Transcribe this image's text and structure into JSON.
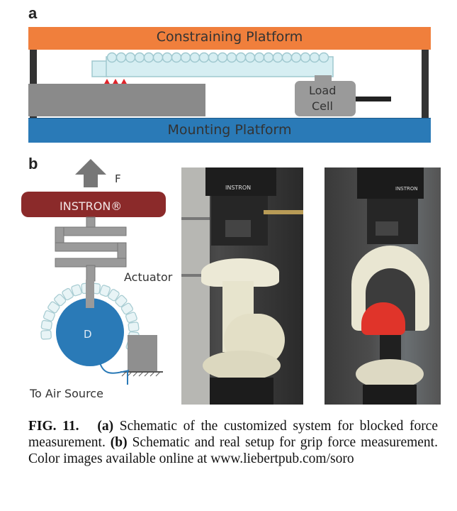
{
  "panel_a": {
    "label": "a",
    "top_platform": "Constraining Platform",
    "bottom_platform": "Mounting Platform",
    "load_cell_line1": "Load",
    "load_cell_line2": "Cell"
  },
  "panel_b": {
    "label": "b",
    "force_label": "F",
    "instron_label": "INSTRON®",
    "actuator_label": "Actuator",
    "diameter_label": "D",
    "air_source_label": "To Air Source",
    "photo_brand": "INSTRON"
  },
  "caption": {
    "fig_label": "FIG. 11.",
    "part_a_label": "(a)",
    "part_a_text": " Schematic of the customized system for blocked force measurement. ",
    "part_b_label": "(b)",
    "part_b_text": " Schematic and real setup for grip force measurement. Color images available online at www.liebertpub.com/soro"
  },
  "colors": {
    "orange": "#f07f3c",
    "blue": "#2a7ab7",
    "gray": "#8a8a8a",
    "actuator": "#d6eef2",
    "instron": "#8b2a2a",
    "red": "#e0232a"
  }
}
